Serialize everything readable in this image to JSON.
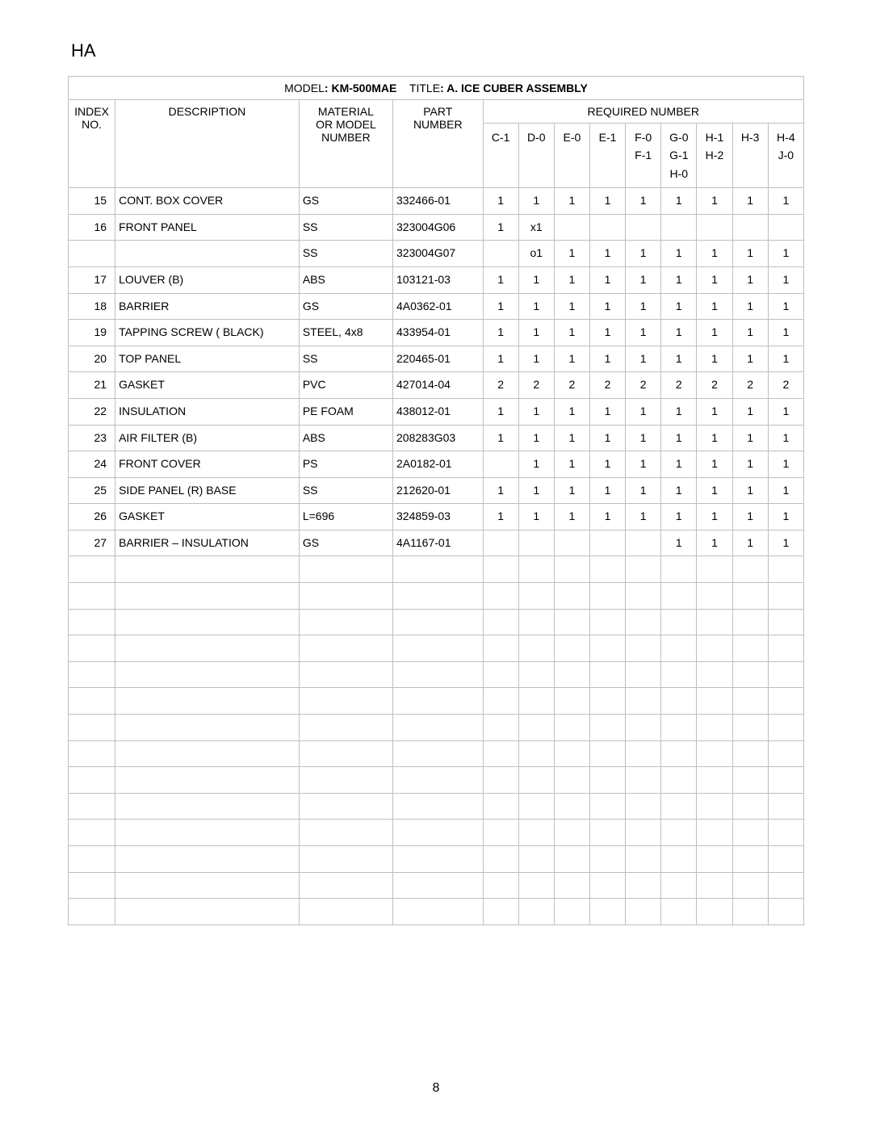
{
  "doc_mark": "HA",
  "page_number": "8",
  "title_line": {
    "model_label": "MODEL",
    "model_value": ": KM-500MAE",
    "title_label": "TITLE",
    "title_value": ": A. ICE CUBER ASSEMBLY"
  },
  "headers": {
    "index": "INDEX NO.",
    "description": "DESCRIPTION",
    "material": "MATERIAL OR MODEL NUMBER",
    "part_number": "PART NUMBER",
    "required_number": "REQUIRED NUMBER"
  },
  "sub_cols": [
    [
      "C-1"
    ],
    [
      "D-0"
    ],
    [
      "E-0"
    ],
    [
      "E-1"
    ],
    [
      "F-0",
      "F-1"
    ],
    [
      "G-0",
      "G-1",
      "H-0"
    ],
    [
      "H-1",
      "H-2"
    ],
    [
      "H-3"
    ],
    [
      "H-4",
      "J-0"
    ]
  ],
  "rows": [
    {
      "idx": "15",
      "desc": "CONT. BOX COVER",
      "mat": "GS",
      "pn": "332466-01",
      "q": [
        "1",
        "1",
        "1",
        "1",
        "1",
        "1",
        "1",
        "1",
        "1"
      ]
    },
    {
      "idx": "16",
      "desc": "FRONT PANEL",
      "mat": "SS",
      "pn": "323004G06",
      "q": [
        "1",
        "x1",
        "",
        "",
        "",
        "",
        "",
        "",
        ""
      ]
    },
    {
      "idx": "",
      "desc": "",
      "mat": "SS",
      "pn": "323004G07",
      "q": [
        "",
        "o1",
        "1",
        "1",
        "1",
        "1",
        "1",
        "1",
        "1"
      ]
    },
    {
      "idx": "17",
      "desc": "LOUVER (B)",
      "mat": "ABS",
      "pn": "103121-03",
      "q": [
        "1",
        "1",
        "1",
        "1",
        "1",
        "1",
        "1",
        "1",
        "1"
      ]
    },
    {
      "idx": "18",
      "desc": "BARRIER",
      "mat": "GS",
      "pn": "4A0362-01",
      "q": [
        "1",
        "1",
        "1",
        "1",
        "1",
        "1",
        "1",
        "1",
        "1"
      ]
    },
    {
      "idx": "19",
      "desc": "TAPPING SCREW ( BLACK)",
      "mat": "STEEL, 4x8",
      "pn": "433954-01",
      "q": [
        "1",
        "1",
        "1",
        "1",
        "1",
        "1",
        "1",
        "1",
        "1"
      ]
    },
    {
      "idx": "20",
      "desc": "TOP PANEL",
      "mat": "SS",
      "pn": "220465-01",
      "q": [
        "1",
        "1",
        "1",
        "1",
        "1",
        "1",
        "1",
        "1",
        "1"
      ]
    },
    {
      "idx": "21",
      "desc": "GASKET",
      "mat": "PVC",
      "pn": "427014-04",
      "q": [
        "2",
        "2",
        "2",
        "2",
        "2",
        "2",
        "2",
        "2",
        "2"
      ]
    },
    {
      "idx": "22",
      "desc": "INSULATION",
      "mat": "PE FOAM",
      "pn": "438012-01",
      "q": [
        "1",
        "1",
        "1",
        "1",
        "1",
        "1",
        "1",
        "1",
        "1"
      ]
    },
    {
      "idx": "23",
      "desc": "AIR FILTER (B)",
      "mat": "ABS",
      "pn": "208283G03",
      "q": [
        "1",
        "1",
        "1",
        "1",
        "1",
        "1",
        "1",
        "1",
        "1"
      ]
    },
    {
      "idx": "24",
      "desc": "FRONT COVER",
      "mat": "PS",
      "pn": "2A0182-01",
      "q": [
        "",
        "1",
        "1",
        "1",
        "1",
        "1",
        "1",
        "1",
        "1"
      ]
    },
    {
      "idx": "25",
      "desc": "SIDE PANEL (R) BASE",
      "mat": "SS",
      "pn": "212620-01",
      "q": [
        "1",
        "1",
        "1",
        "1",
        "1",
        "1",
        "1",
        "1",
        "1"
      ]
    },
    {
      "idx": "26",
      "desc": "GASKET",
      "mat": "L=696",
      "pn": "324859-03",
      "q": [
        "1",
        "1",
        "1",
        "1",
        "1",
        "1",
        "1",
        "1",
        "1"
      ]
    },
    {
      "idx": "27",
      "desc": "BARRIER – INSULATION",
      "mat": "GS",
      "pn": "4A1167-01",
      "q": [
        "",
        "",
        "",
        "",
        "",
        "1",
        "1",
        "1",
        "1"
      ]
    }
  ],
  "empty_rows": 14,
  "col_widths": {
    "idx": 50,
    "desc": 196,
    "mat": 100,
    "pn": 96,
    "q": 38
  },
  "colors": {
    "border": "#bfbfbf",
    "text": "#000000",
    "bg": "#ffffff"
  }
}
